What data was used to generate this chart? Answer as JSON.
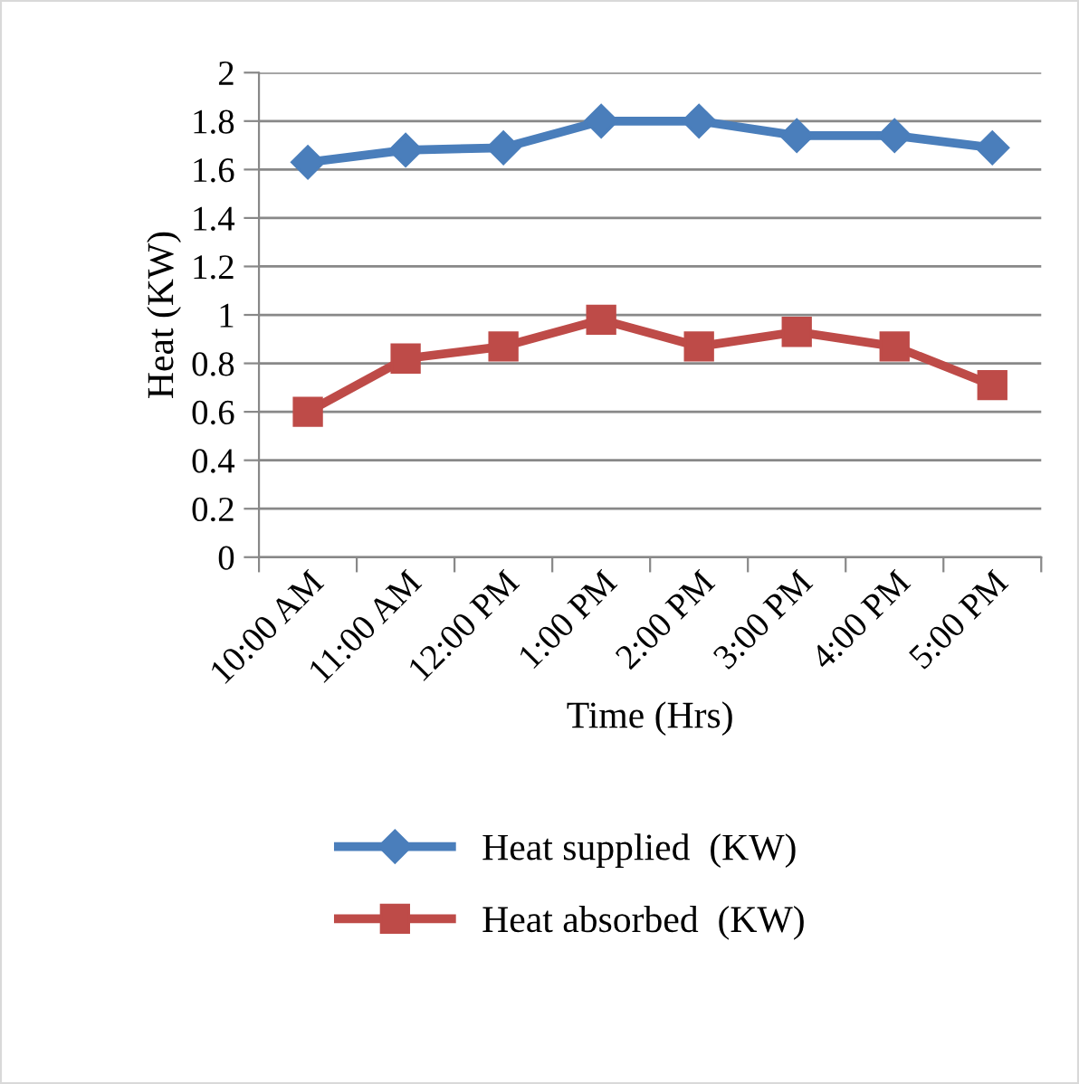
{
  "chart_data": {
    "type": "line",
    "xlabel": "Time (Hrs)",
    "ylabel": "Heat (KW)",
    "categories": [
      "10:00 AM",
      "11:00 AM",
      "12:00 PM",
      "1:00 PM",
      "2:00 PM",
      "3:00 PM",
      "4:00 PM",
      "5:00 PM"
    ],
    "series": [
      {
        "name": "Heat supplied  (KW)",
        "color": "#4a7ebb",
        "marker": "diamond",
        "values": [
          1.63,
          1.68,
          1.69,
          1.8,
          1.8,
          1.74,
          1.74,
          1.69
        ]
      },
      {
        "name": "Heat absorbed  (KW)",
        "color": "#be4b48",
        "marker": "square",
        "values": [
          0.6,
          0.82,
          0.87,
          0.98,
          0.87,
          0.93,
          0.87,
          0.71
        ]
      }
    ],
    "ylim": [
      0,
      2
    ],
    "yticks": [
      0,
      0.2,
      0.4,
      0.6,
      0.8,
      1,
      1.2,
      1.4,
      1.6,
      1.8,
      2
    ],
    "grid": "y",
    "legend": "bottom",
    "line_style": "solid"
  }
}
